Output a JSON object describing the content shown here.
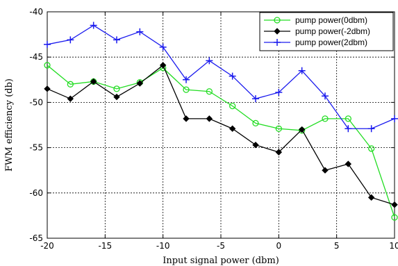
{
  "chart_data": {
    "type": "line",
    "xlabel": "Input signal power (dbm)",
    "ylabel": "FWM efficiency (db)",
    "xlim": [
      -20,
      10
    ],
    "ylim": [
      -65,
      -40
    ],
    "xticks": [
      -20,
      -15,
      -10,
      -5,
      0,
      5,
      10
    ],
    "yticks": [
      -40,
      -45,
      -50,
      -55,
      -60,
      -65
    ],
    "grid": true,
    "legend_position": "top-right",
    "series": [
      {
        "name": "pump power(0dbm)",
        "color": "#22dd22",
        "marker": "circle",
        "x": [
          -20,
          -18,
          -16,
          -14,
          -12,
          -10,
          -8,
          -6,
          -4,
          -2,
          0,
          2,
          4,
          6,
          8,
          10
        ],
        "y": [
          -45.9,
          -48.0,
          -47.7,
          -48.5,
          -47.8,
          -46.2,
          -48.6,
          -48.8,
          -50.4,
          -52.3,
          -52.9,
          -53.1,
          -51.8,
          -51.8,
          -55.1,
          -62.7
        ]
      },
      {
        "name": "pump power(-2dbm)",
        "color": "#000000",
        "marker": "diamond",
        "x": [
          -20,
          -18,
          -16,
          -14,
          -12,
          -10,
          -8,
          -6,
          -4,
          -2,
          0,
          2,
          4,
          6,
          8,
          10
        ],
        "y": [
          -48.5,
          -49.6,
          -47.7,
          -49.4,
          -47.9,
          -45.9,
          -51.8,
          -51.8,
          -52.9,
          -54.7,
          -55.5,
          -53.0,
          -57.5,
          -56.8,
          -60.5,
          -61.3
        ]
      },
      {
        "name": "pump power(2dbm)",
        "color": "#1a1aee",
        "marker": "plus",
        "x": [
          -20,
          -18,
          -16,
          -14,
          -12,
          -10,
          -8,
          -6,
          -4,
          -2,
          0,
          2,
          4,
          6,
          8,
          10
        ],
        "y": [
          -43.6,
          -43.1,
          -41.5,
          -43.1,
          -42.2,
          -43.9,
          -47.5,
          -45.4,
          -47.1,
          -49.6,
          -48.9,
          -46.5,
          -49.3,
          -52.9,
          -52.9,
          -51.8
        ]
      }
    ]
  }
}
